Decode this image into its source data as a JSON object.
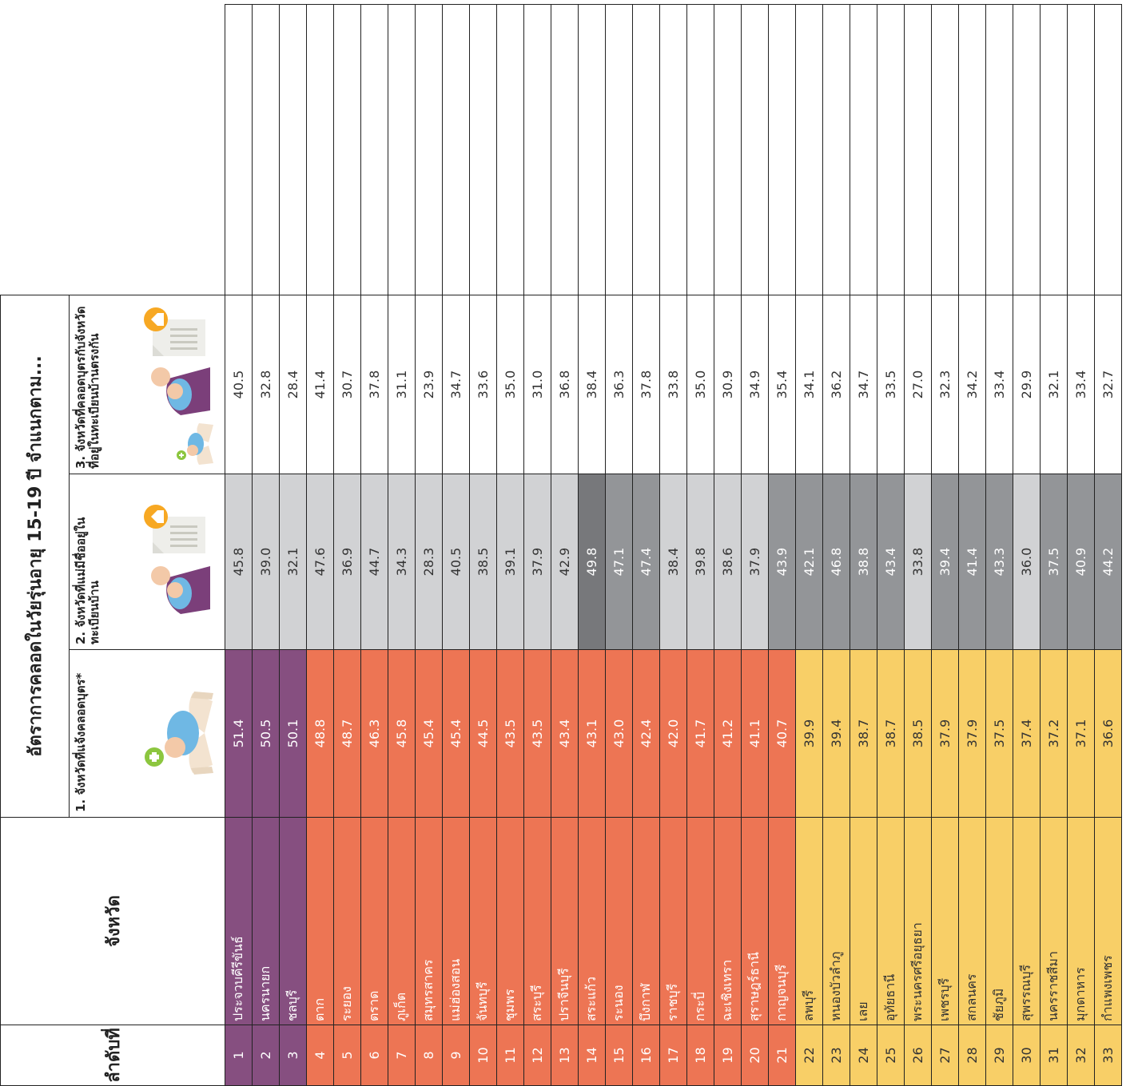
{
  "header": {
    "title": "อัตราการคลอดในวัยรุ่นอายุ 15-19 ปี จำแนกตาม...",
    "rank_label": "ลำดับที่",
    "province_label": "จังหวัด",
    "col1": "1. จังหวัดที่แจ้งคลอดบุตร*",
    "col2": "2. จังหวัดที่แม่มีชื่ออยู่ในทะเบียนบ้าน",
    "col3": "3. จังหวัดที่คลอดบุตรกับจังหวัดที่อยู่ในทะเบียนบ้านตรงกัน"
  },
  "palette": {
    "purple": "#864f80",
    "orange": "#ed7554",
    "yellow": "#f8cf67",
    "gray_light": "#d1d2d4",
    "gray_mid": "#939598",
    "gray_dark": "#77787b",
    "icon_baby_blue": "#6fb8e4",
    "icon_plus_green": "#8cc63f",
    "icon_house_orange": "#f7a823"
  },
  "icons": {
    "col1": "baby-in-hands-icon",
    "col2": "mother-and-house-registration-icon",
    "col3": "baby-mother-house-registration-icon"
  },
  "rows": [
    {
      "rank": "1",
      "province": "ประจวบคีรีขันธ์",
      "v1": "51.4",
      "v2": "45.8",
      "v3": "40.5",
      "c1": "purple",
      "c2": "gray1"
    },
    {
      "rank": "2",
      "province": "นครนายก",
      "v1": "50.5",
      "v2": "39.0",
      "v3": "32.8",
      "c1": "purple",
      "c2": "gray1"
    },
    {
      "rank": "3",
      "province": "ชลบุรี",
      "v1": "50.1",
      "v2": "32.1",
      "v3": "28.4",
      "c1": "purple",
      "c2": "gray1"
    },
    {
      "rank": "4",
      "province": "ตาก",
      "v1": "48.8",
      "v2": "47.6",
      "v3": "41.4",
      "c1": "orange",
      "c2": "gray1"
    },
    {
      "rank": "5",
      "province": "ระยอง",
      "v1": "48.7",
      "v2": "36.9",
      "v3": "30.7",
      "c1": "orange",
      "c2": "gray1"
    },
    {
      "rank": "6",
      "province": "ตราด",
      "v1": "46.3",
      "v2": "44.7",
      "v3": "37.8",
      "c1": "orange",
      "c2": "gray1"
    },
    {
      "rank": "7",
      "province": "ภูเก็ต",
      "v1": "45.8",
      "v2": "34.3",
      "v3": "31.1",
      "c1": "orange",
      "c2": "gray1"
    },
    {
      "rank": "8",
      "province": "สมุทรสาคร",
      "v1": "45.4",
      "v2": "28.3",
      "v3": "23.9",
      "c1": "orange",
      "c2": "gray1"
    },
    {
      "rank": "9",
      "province": "แม่ฮ่องสอน",
      "v1": "45.4",
      "v2": "40.5",
      "v3": "34.7",
      "c1": "orange",
      "c2": "gray1"
    },
    {
      "rank": "10",
      "province": "จันทบุรี",
      "v1": "44.5",
      "v2": "38.5",
      "v3": "33.6",
      "c1": "orange",
      "c2": "gray1"
    },
    {
      "rank": "11",
      "province": "ชุมพร",
      "v1": "43.5",
      "v2": "39.1",
      "v3": "35.0",
      "c1": "orange",
      "c2": "gray1"
    },
    {
      "rank": "12",
      "province": "สระบุรี",
      "v1": "43.5",
      "v2": "37.9",
      "v3": "31.0",
      "c1": "orange",
      "c2": "gray1"
    },
    {
      "rank": "13",
      "province": "ปราจีนบุรี",
      "v1": "43.4",
      "v2": "42.9",
      "v3": "36.8",
      "c1": "orange",
      "c2": "gray1"
    },
    {
      "rank": "14",
      "province": "สระแก้ว",
      "v1": "43.1",
      "v2": "49.8",
      "v3": "38.4",
      "c1": "orange",
      "c2": "gray3"
    },
    {
      "rank": "15",
      "province": "ระนอง",
      "v1": "43.0",
      "v2": "47.1",
      "v3": "36.3",
      "c1": "orange",
      "c2": "gray2"
    },
    {
      "rank": "16",
      "province": "บึงกาฬ",
      "v1": "42.4",
      "v2": "47.4",
      "v3": "37.8",
      "c1": "orange",
      "c2": "gray2"
    },
    {
      "rank": "17",
      "province": "ราชบุรี",
      "v1": "42.0",
      "v2": "38.4",
      "v3": "33.8",
      "c1": "orange",
      "c2": "gray1"
    },
    {
      "rank": "18",
      "province": "กระบี่",
      "v1": "41.7",
      "v2": "39.8",
      "v3": "35.0",
      "c1": "orange",
      "c2": "gray1"
    },
    {
      "rank": "19",
      "province": "ฉะเชิงเทรา",
      "v1": "41.2",
      "v2": "38.6",
      "v3": "30.9",
      "c1": "orange",
      "c2": "gray1"
    },
    {
      "rank": "20",
      "province": "สุราษฎร์ธานี",
      "v1": "41.1",
      "v2": "37.9",
      "v3": "34.9",
      "c1": "orange",
      "c2": "gray1"
    },
    {
      "rank": "21",
      "province": "กาญจนบุรี",
      "v1": "40.7",
      "v2": "43.9",
      "v3": "35.4",
      "c1": "orange",
      "c2": "gray2"
    },
    {
      "rank": "22",
      "province": "ลพบุรี",
      "v1": "39.9",
      "v2": "42.1",
      "v3": "34.1",
      "c1": "yellow",
      "c2": "gray2"
    },
    {
      "rank": "23",
      "province": "หนองบัวลำภู",
      "v1": "39.4",
      "v2": "46.8",
      "v3": "36.2",
      "c1": "yellow",
      "c2": "gray2"
    },
    {
      "rank": "24",
      "province": "เลย",
      "v1": "38.7",
      "v2": "38.8",
      "v3": "34.7",
      "c1": "yellow",
      "c2": "gray2"
    },
    {
      "rank": "25",
      "province": "อุทัยธานี",
      "v1": "38.7",
      "v2": "43.4",
      "v3": "33.5",
      "c1": "yellow",
      "c2": "gray2"
    },
    {
      "rank": "26",
      "province": "พระนครศรีอยุธยา",
      "v1": "38.5",
      "v2": "33.8",
      "v3": "27.0",
      "c1": "yellow",
      "c2": "gray1"
    },
    {
      "rank": "27",
      "province": "เพชรบุรี",
      "v1": "37.9",
      "v2": "39.4",
      "v3": "32.3",
      "c1": "yellow",
      "c2": "gray2"
    },
    {
      "rank": "28",
      "province": "สกลนคร",
      "v1": "37.9",
      "v2": "41.4",
      "v3": "34.2",
      "c1": "yellow",
      "c2": "gray2"
    },
    {
      "rank": "29",
      "province": "ชัยภูมิ",
      "v1": "37.5",
      "v2": "43.3",
      "v3": "33.4",
      "c1": "yellow",
      "c2": "gray2"
    },
    {
      "rank": "30",
      "province": "สุพรรณบุรี",
      "v1": "37.4",
      "v2": "36.0",
      "v3": "29.9",
      "c1": "yellow",
      "c2": "gray1"
    },
    {
      "rank": "31",
      "province": "นครราชสีมา",
      "v1": "37.2",
      "v2": "37.5",
      "v3": "32.1",
      "c1": "yellow",
      "c2": "gray2"
    },
    {
      "rank": "32",
      "province": "มุกดาหาร",
      "v1": "37.1",
      "v2": "40.9",
      "v3": "33.4",
      "c1": "yellow",
      "c2": "gray2"
    },
    {
      "rank": "33",
      "province": "กำแพงเพชร",
      "v1": "36.6",
      "v2": "44.2",
      "v3": "32.7",
      "c1": "yellow",
      "c2": "gray2"
    }
  ]
}
